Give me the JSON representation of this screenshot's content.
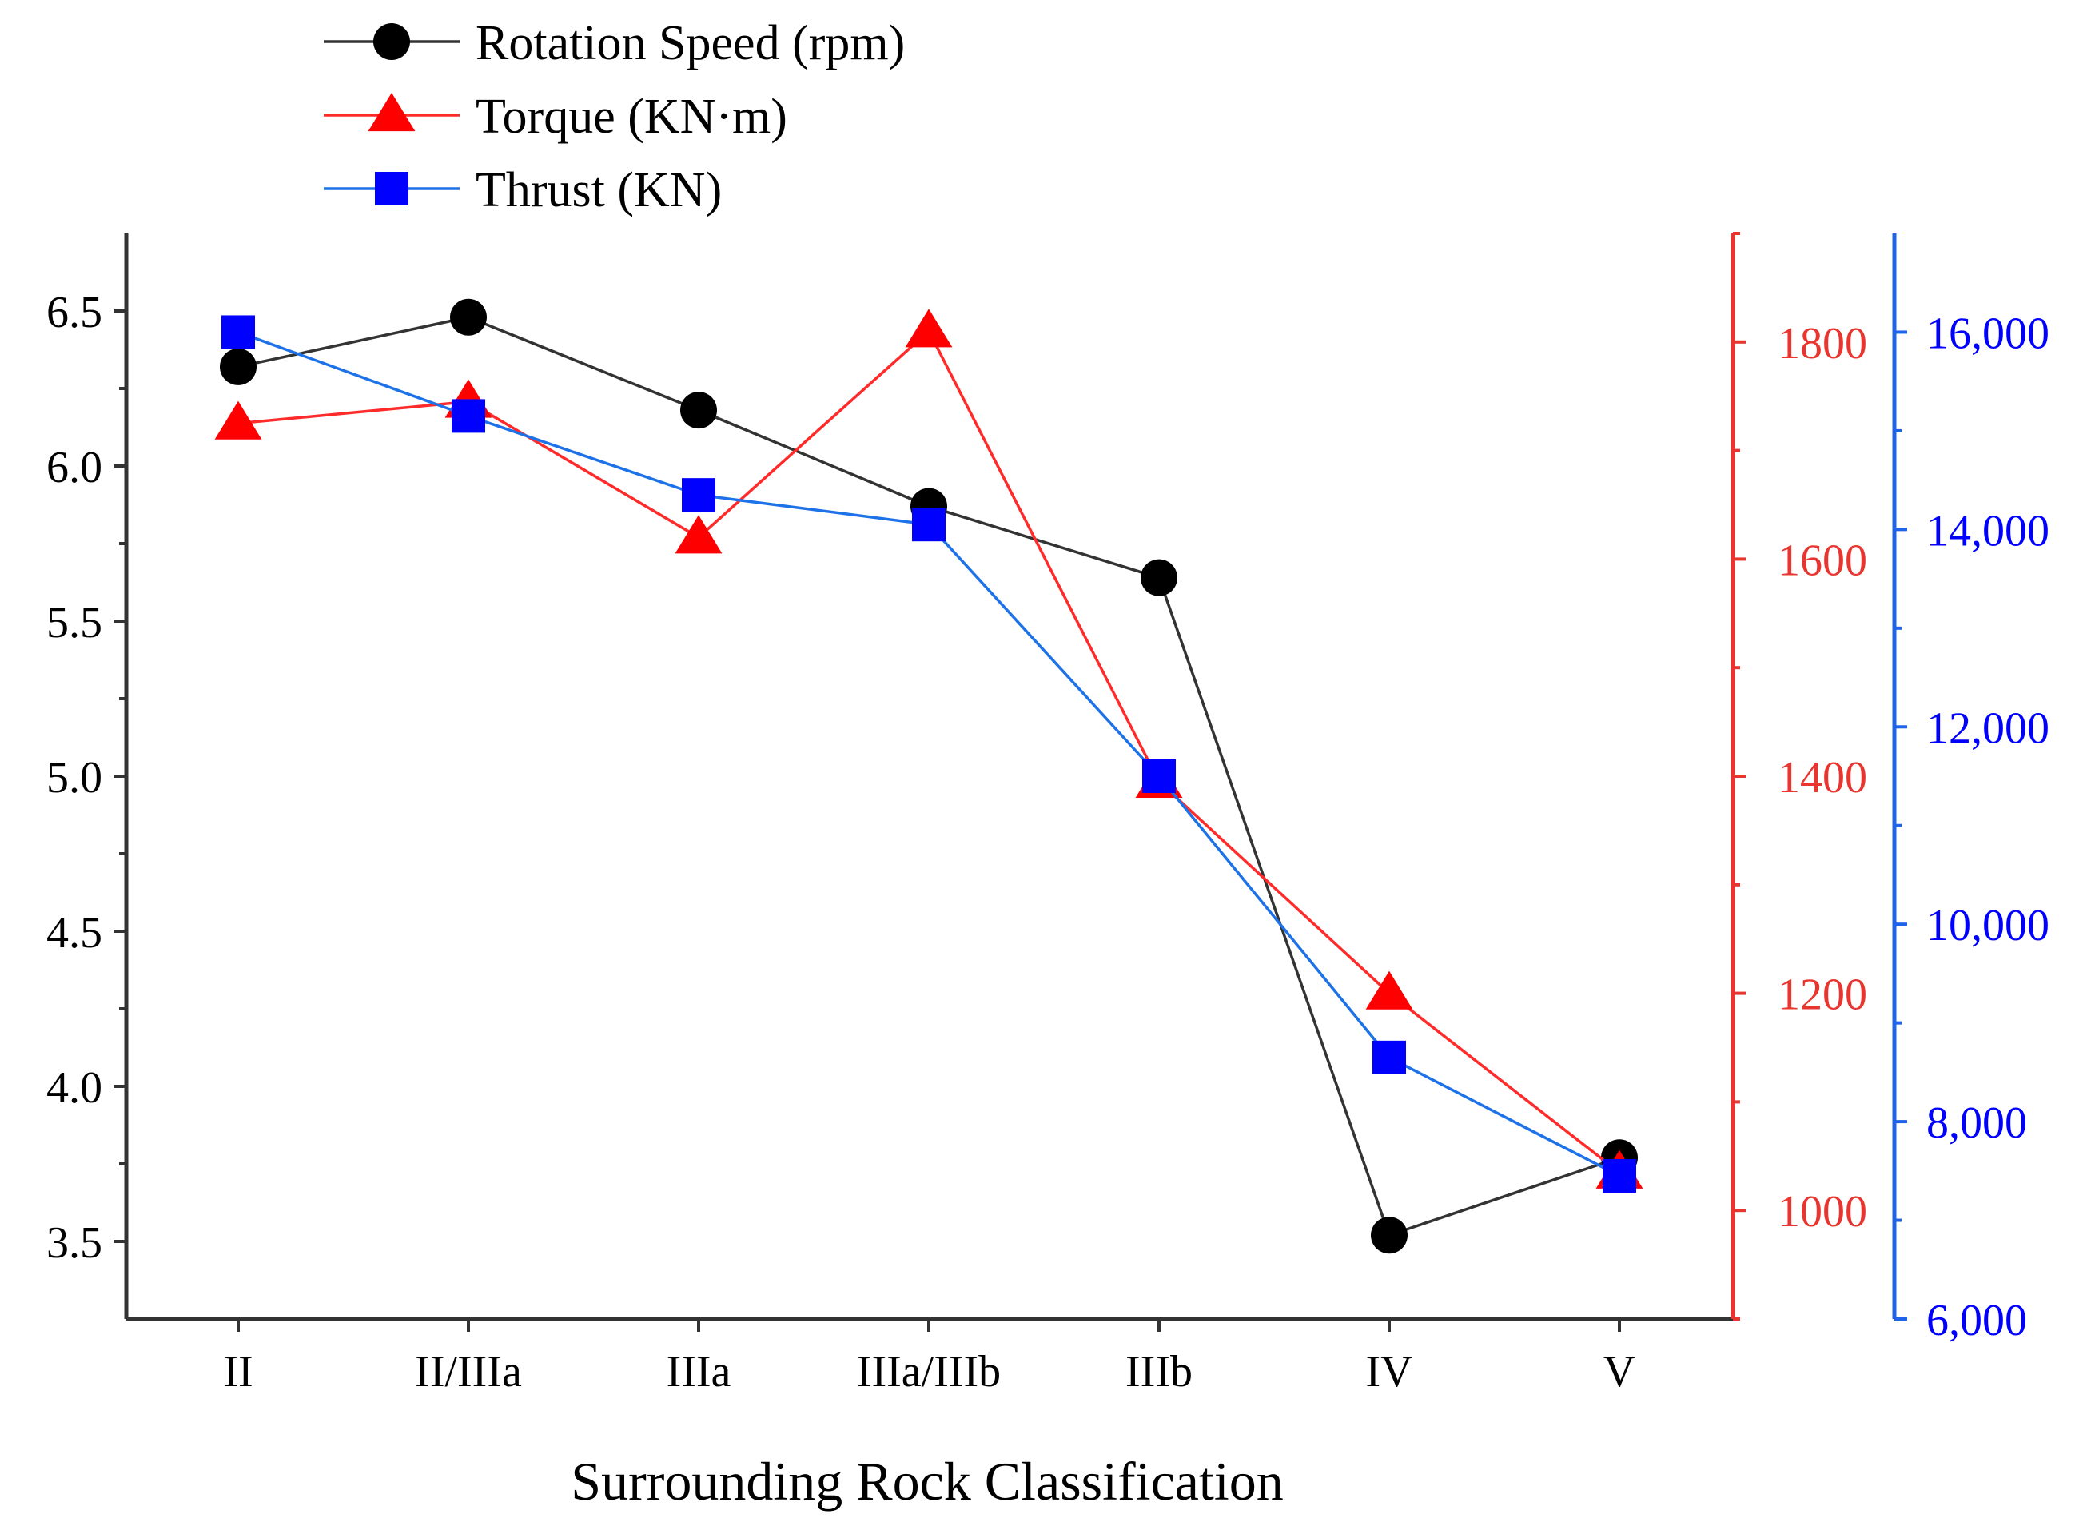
{
  "chart_data": {
    "type": "line",
    "categories": [
      "II",
      "II/IIIa",
      "IIIa",
      "IIIa/IIIb",
      "IIIb",
      "IV",
      "V"
    ],
    "xlabel": "Surrounding Rock Classification",
    "legend_position": "top-left",
    "axes": {
      "left": {
        "ylim": [
          3.25,
          6.75
        ],
        "ticks": [
          3.5,
          4.0,
          4.5,
          5.0,
          5.5,
          6.0,
          6.5
        ],
        "tick_labels": [
          "3.5",
          "4.0",
          "4.5",
          "5.0",
          "5.5",
          "6.0",
          "6.5"
        ],
        "color": "#333333"
      },
      "right1": {
        "ylim": [
          900,
          1900
        ],
        "ticks": [
          1000,
          1200,
          1400,
          1600,
          1800
        ],
        "tick_labels": [
          "1000",
          "1200",
          "1400",
          "1600",
          "1800"
        ],
        "color": "#e8352f"
      },
      "right2": {
        "ylim": [
          6000,
          17000
        ],
        "ticks": [
          6000,
          8000,
          10000,
          12000,
          14000,
          16000
        ],
        "tick_labels": [
          "6,000",
          "8,000",
          "10,000",
          "12,000",
          "14,000",
          "16,000"
        ],
        "color": "#1e63e8"
      }
    },
    "series": [
      {
        "name": "Rotation Speed (rpm)",
        "axis": "left",
        "marker": "circle",
        "line_color": "#333333",
        "marker_color": "#000000",
        "values": [
          6.32,
          6.48,
          6.18,
          5.87,
          5.64,
          3.52,
          3.77
        ]
      },
      {
        "name": "Torque (KN·m)",
        "axis": "right1",
        "marker": "triangle",
        "line_color": "#ff2a2a",
        "marker_color": "#ff0000",
        "values": [
          1725,
          1745,
          1620,
          1810,
          1395,
          1200,
          1035
        ]
      },
      {
        "name": "Thrust (KN)",
        "axis": "right2",
        "marker": "square",
        "line_color": "#1e72e8",
        "marker_color": "#0000ff",
        "values": [
          16000,
          15150,
          14350,
          14050,
          11500,
          8650,
          7450
        ]
      }
    ]
  }
}
